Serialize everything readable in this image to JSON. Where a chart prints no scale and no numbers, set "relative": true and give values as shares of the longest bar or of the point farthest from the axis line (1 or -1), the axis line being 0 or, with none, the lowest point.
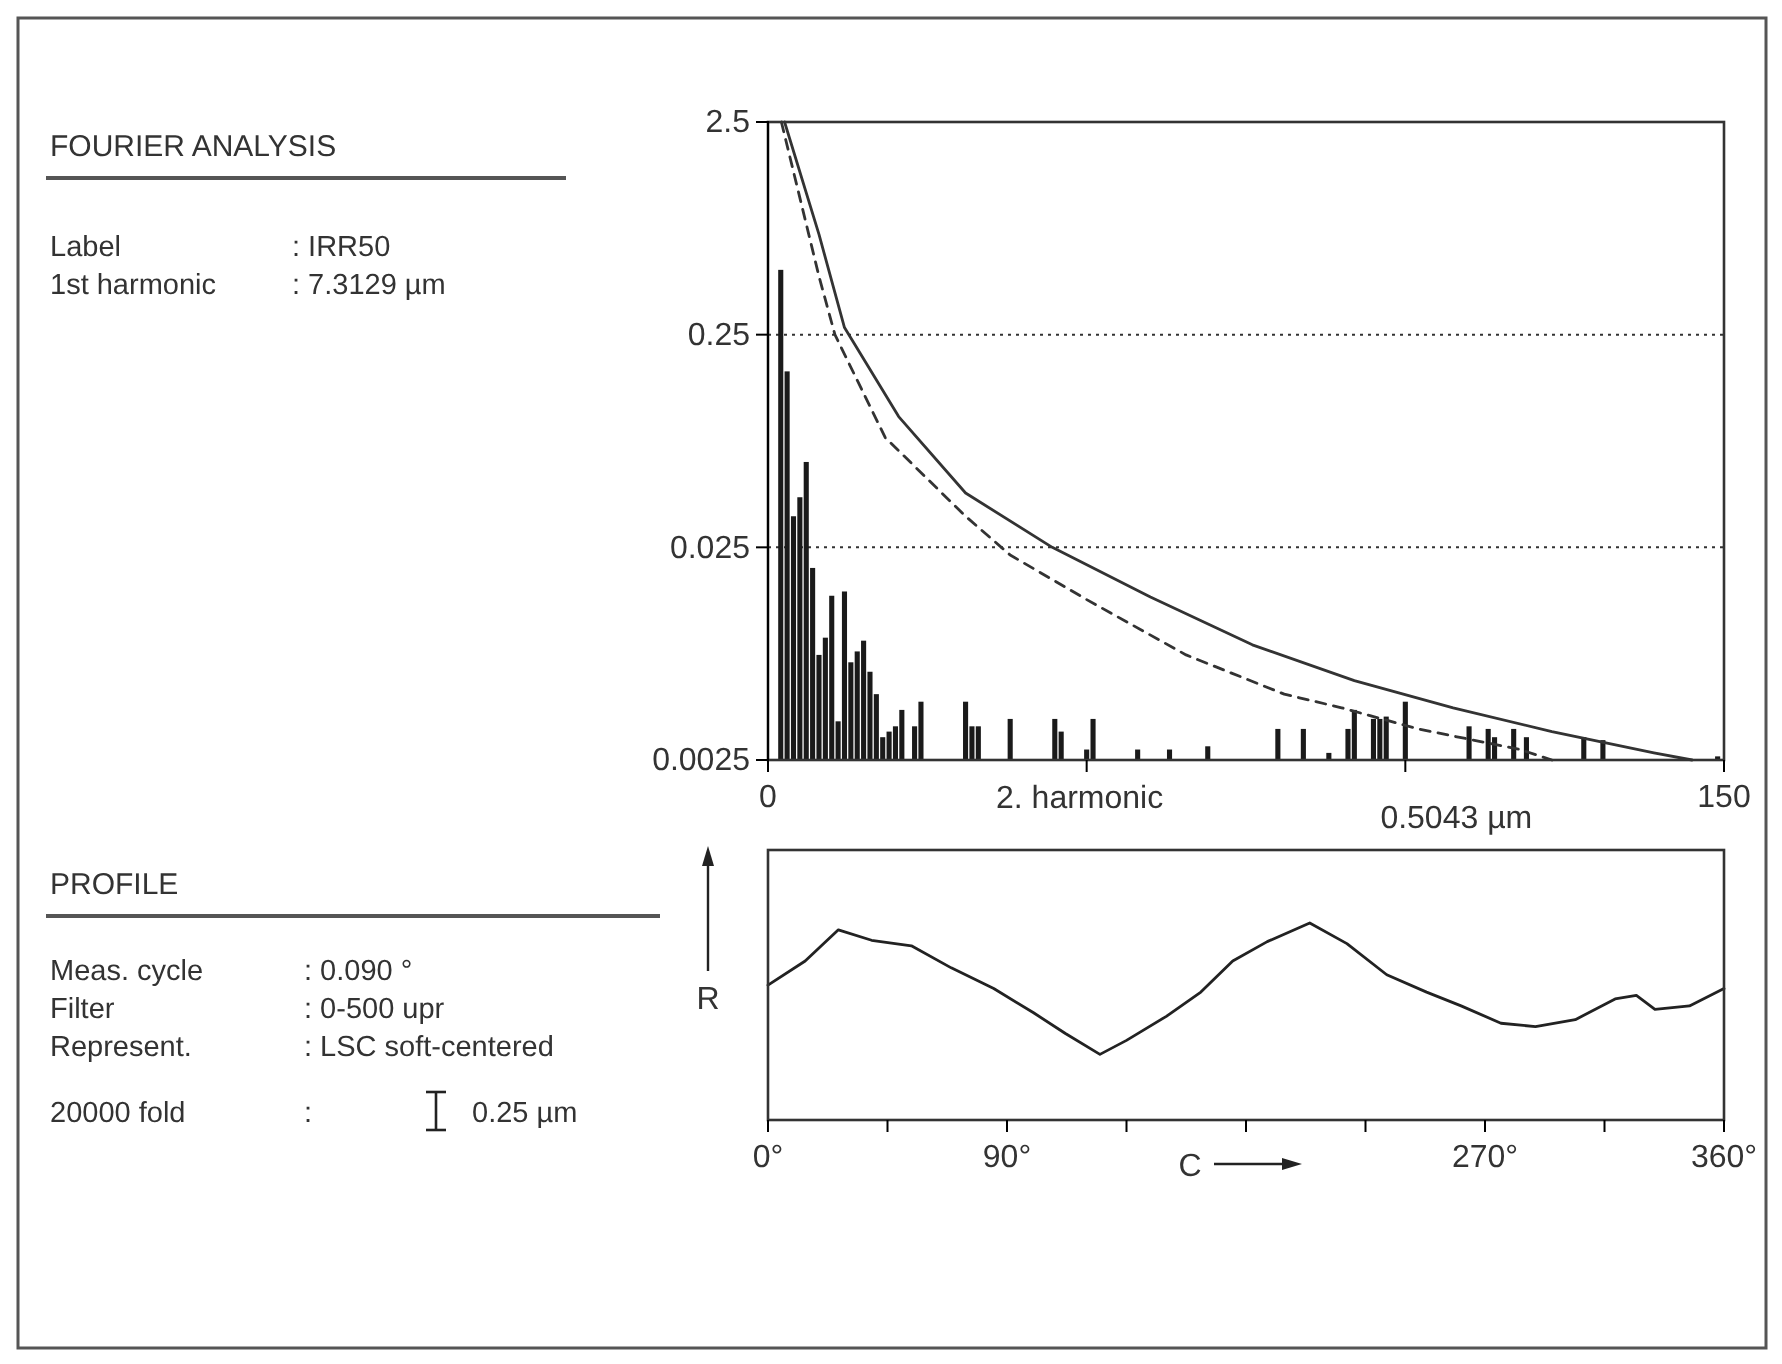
{
  "chart_data": [
    {
      "type": "other",
      "title": "FOURIER ANALYSIS",
      "annotations": [
        "Label",
        ": IRR50",
        "1st harmonic",
        ": 7.3129 µm"
      ]
    },
    {
      "type": "bar",
      "xlabel": "2. harmonic",
      "annotations": [
        "0.5043 µm"
      ],
      "xlim": [
        0,
        150
      ],
      "xticks": [
        0,
        {
          "value": 50,
          "label": null
        },
        {
          "value": 100,
          "label": null
        },
        150
      ],
      "log": true,
      "ylim": [
        0.0025,
        2.5
      ],
      "yticks": [
        0.0025,
        0.025,
        0.25,
        2.5
      ],
      "grid": "y",
      "series": [
        {
          "type": "bar",
          "color": "#1a1a1a",
          "x": [
            2,
            3,
            4,
            5,
            6,
            7,
            8,
            9,
            10,
            11,
            12,
            13,
            14,
            15,
            16,
            17,
            18,
            19,
            20,
            21,
            23,
            24,
            31,
            32,
            33,
            38,
            45,
            46,
            50,
            51,
            58,
            63,
            69,
            80,
            84,
            88,
            91,
            92,
            95,
            96,
            97,
            100,
            110,
            113,
            114,
            117,
            119,
            128,
            131,
            149
          ],
          "values": [
            0.5043,
            0.168,
            0.035,
            0.043,
            0.063,
            0.02,
            0.0078,
            0.0094,
            0.0148,
            0.0038,
            0.0155,
            0.0072,
            0.0081,
            0.0091,
            0.0065,
            0.0051,
            0.0032,
            0.0034,
            0.0036,
            0.0043,
            0.0036,
            0.0047,
            0.0047,
            0.0036,
            0.0036,
            0.0039,
            0.0039,
            0.0034,
            0.0028,
            0.0039,
            0.0028,
            0.0028,
            0.0029,
            0.0035,
            0.0035,
            0.0027,
            0.0035,
            0.0043,
            0.0039,
            0.0039,
            0.004,
            0.0047,
            0.0036,
            0.0035,
            0.0032,
            0.0035,
            0.0032,
            0.0032,
            0.0031,
            0.0026
          ]
        },
        {
          "type": "line",
          "color": "#333333",
          "line_style": "solid",
          "x": [
            2.6,
            8,
            12,
            20.5,
            31,
            44.6,
            60,
            76,
            92,
            107.5,
            123,
            139,
            145
          ],
          "values": [
            2.5,
            0.74,
            0.27,
            0.103,
            0.045,
            0.025,
            0.0146,
            0.0087,
            0.0059,
            0.0044,
            0.0034,
            0.0027,
            0.0025
          ]
        },
        {
          "type": "line",
          "color": "#333333",
          "line_style": "dashed",
          "x": [
            2.1,
            8,
            10.5,
            18.4,
            31,
            38,
            50,
            65.6,
            81,
            90,
            102,
            118,
            123
          ],
          "values": [
            2.5,
            0.47,
            0.25,
            0.082,
            0.035,
            0.023,
            0.0142,
            0.0078,
            0.0051,
            0.0044,
            0.0035,
            0.0028,
            0.0025
          ]
        }
      ]
    },
    {
      "type": "other",
      "title": "PROFILE",
      "annotations": [
        "Meas. cycle",
        ": 0.090 °",
        "Filter",
        ": 0-500 upr",
        "Represent.",
        ": LSC soft-centered",
        "20000 fold",
        ":",
        "0.25 µm"
      ]
    },
    {
      "type": "line",
      "xlabel": "C",
      "ylabel": "R",
      "relative": true,
      "xlim": [
        0,
        360
      ],
      "xticks": [
        {
          "value": 0,
          "label": "0°"
        },
        {
          "value": 45,
          "label": null
        },
        {
          "value": 90,
          "label": "90°"
        },
        {
          "value": 135,
          "label": null
        },
        {
          "value": 180,
          "label": null
        },
        {
          "value": 225,
          "label": null
        },
        {
          "value": 270,
          "label": "270°"
        },
        {
          "value": 315,
          "label": null
        },
        {
          "value": 360,
          "label": "360°"
        }
      ],
      "series": [
        {
          "color": "#222222",
          "x": [
            0,
            14,
            26.5,
            39,
            54,
            69,
            85,
            100,
            112,
            125,
            135,
            150,
            163,
            175,
            188,
            204,
            218,
            233,
            248,
            261,
            276,
            289,
            304,
            319,
            327,
            334,
            347,
            360
          ],
          "values": [
            0.684,
            0.807,
            0.965,
            0.912,
            0.884,
            0.772,
            0.667,
            0.544,
            0.439,
            0.333,
            0.404,
            0.526,
            0.649,
            0.807,
            0.905,
            1.0,
            0.895,
            0.737,
            0.649,
            0.579,
            0.491,
            0.474,
            0.509,
            0.614,
            0.632,
            0.561,
            0.579,
            0.667
          ]
        }
      ]
    }
  ]
}
